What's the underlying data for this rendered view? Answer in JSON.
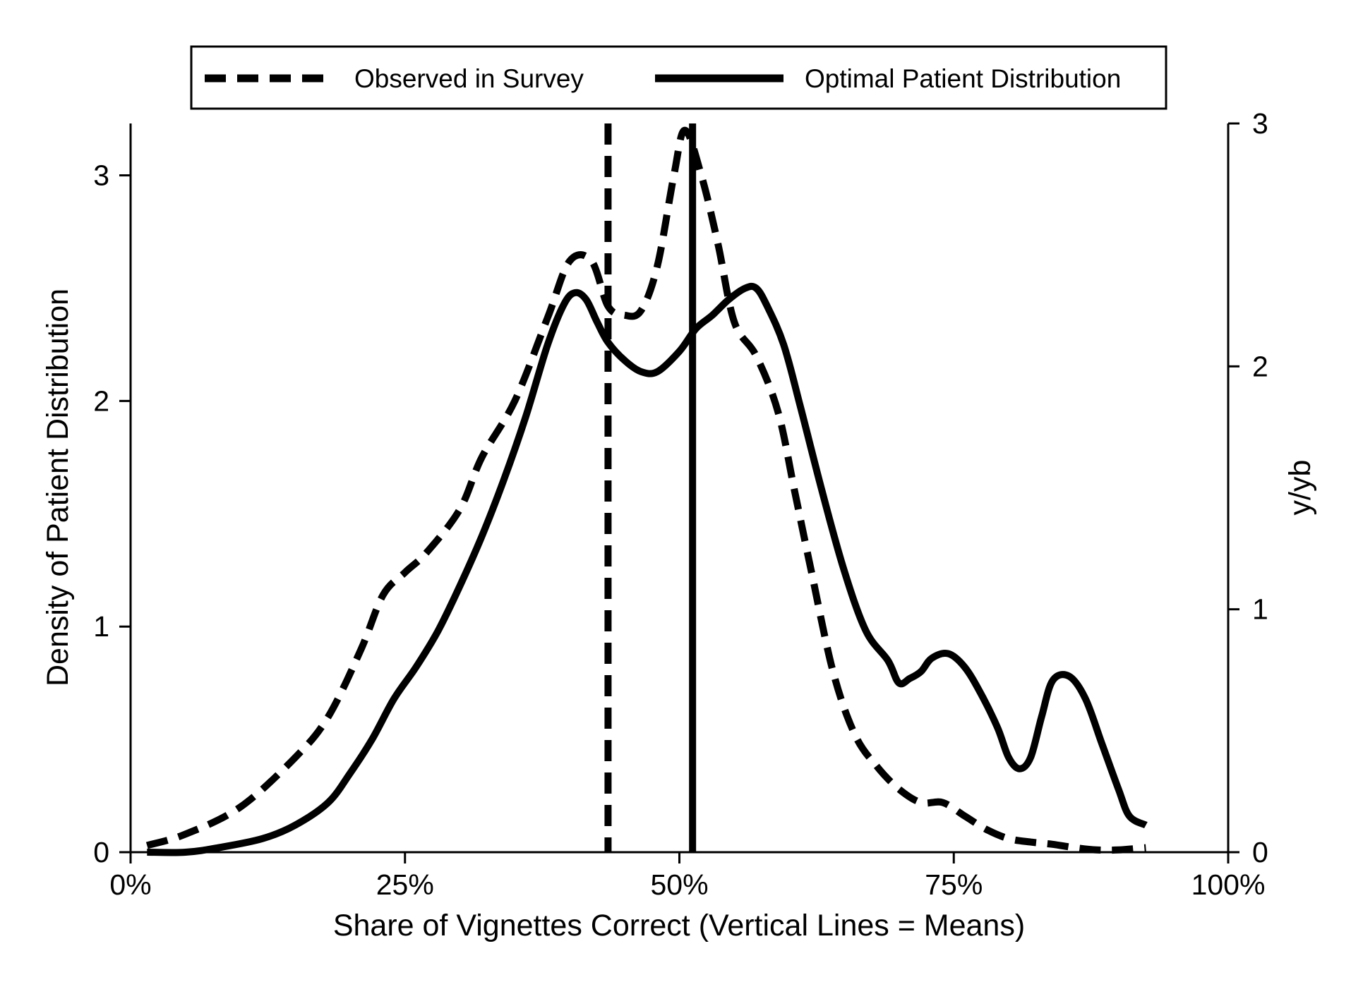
{
  "chart_data": {
    "type": "line",
    "xlabel": "Share of Vignettes Correct (Vertical Lines = Means)",
    "ylabel_left": "Density of Patient Distribution",
    "ylabel_right": "y/yb",
    "xlim": [
      0,
      100
    ],
    "ylim_left": [
      0,
      3.23
    ],
    "ylim_right": [
      0,
      3
    ],
    "x_ticks": [
      0,
      25,
      50,
      75,
      100
    ],
    "x_tick_labels": [
      "0%",
      "25%",
      "50%",
      "75%",
      "100%"
    ],
    "y_left_ticks": [
      0,
      1,
      2,
      3
    ],
    "y_left_tick_labels": [
      "0",
      "1",
      "2",
      "3"
    ],
    "y_right_ticks": [
      0,
      1,
      2,
      3
    ],
    "y_right_tick_labels": [
      "0",
      "1",
      "2",
      "3"
    ],
    "grid": false,
    "legend_position": "top",
    "series": [
      {
        "name": "Observed in Survey",
        "style": "dashed",
        "color": "#000000",
        "x": [
          1.5,
          5,
          10,
          15,
          18,
          21,
          23,
          25,
          27,
          30,
          32,
          35,
          38,
          40,
          42,
          43.5,
          45,
          46.5,
          48,
          49.5,
          50.5,
          52,
          53.5,
          55,
          57,
          59,
          60.5,
          62,
          64,
          66,
          68,
          70,
          72,
          74,
          76,
          78,
          80,
          82,
          84,
          86,
          88,
          90,
          92.5
        ],
        "y": [
          0.03,
          0.08,
          0.2,
          0.42,
          0.6,
          0.9,
          1.14,
          1.24,
          1.33,
          1.52,
          1.75,
          2.0,
          2.37,
          2.62,
          2.62,
          2.42,
          2.38,
          2.4,
          2.6,
          3.0,
          3.2,
          3.0,
          2.7,
          2.35,
          2.2,
          1.95,
          1.6,
          1.25,
          0.8,
          0.52,
          0.38,
          0.28,
          0.22,
          0.22,
          0.16,
          0.1,
          0.06,
          0.045,
          0.035,
          0.02,
          0.01,
          0.01,
          0.02
        ]
      },
      {
        "name": "Optimal Patient Distribution",
        "style": "solid",
        "color": "#000000",
        "x": [
          1.5,
          5,
          8,
          12,
          15,
          18,
          20,
          22,
          24,
          26,
          28,
          30,
          32,
          34,
          36,
          38,
          39.5,
          40.5,
          41.5,
          42.5,
          43.5,
          45,
          46.5,
          48,
          50,
          51.5,
          53,
          54.5,
          56,
          57,
          58,
          59.5,
          61,
          63,
          65,
          67,
          69,
          70,
          71,
          72,
          73,
          74.5,
          76,
          77.5,
          79,
          80,
          81,
          82,
          83,
          84,
          85.5,
          87,
          88.5,
          90,
          91,
          92.5
        ],
        "y": [
          0.0,
          0.0,
          0.02,
          0.06,
          0.12,
          0.22,
          0.35,
          0.5,
          0.68,
          0.82,
          0.98,
          1.18,
          1.4,
          1.65,
          1.93,
          2.25,
          2.43,
          2.48,
          2.45,
          2.35,
          2.26,
          2.18,
          2.13,
          2.13,
          2.22,
          2.32,
          2.38,
          2.45,
          2.5,
          2.5,
          2.42,
          2.25,
          1.98,
          1.6,
          1.25,
          0.98,
          0.85,
          0.75,
          0.77,
          0.8,
          0.86,
          0.88,
          0.82,
          0.7,
          0.55,
          0.42,
          0.37,
          0.42,
          0.6,
          0.76,
          0.78,
          0.68,
          0.48,
          0.28,
          0.16,
          0.12
        ]
      }
    ],
    "vertical_lines": [
      {
        "series": "Observed in Survey",
        "x": 43.5,
        "style": "dashed"
      },
      {
        "series": "Optimal Patient Distribution",
        "x": 51.2,
        "style": "solid"
      }
    ]
  }
}
